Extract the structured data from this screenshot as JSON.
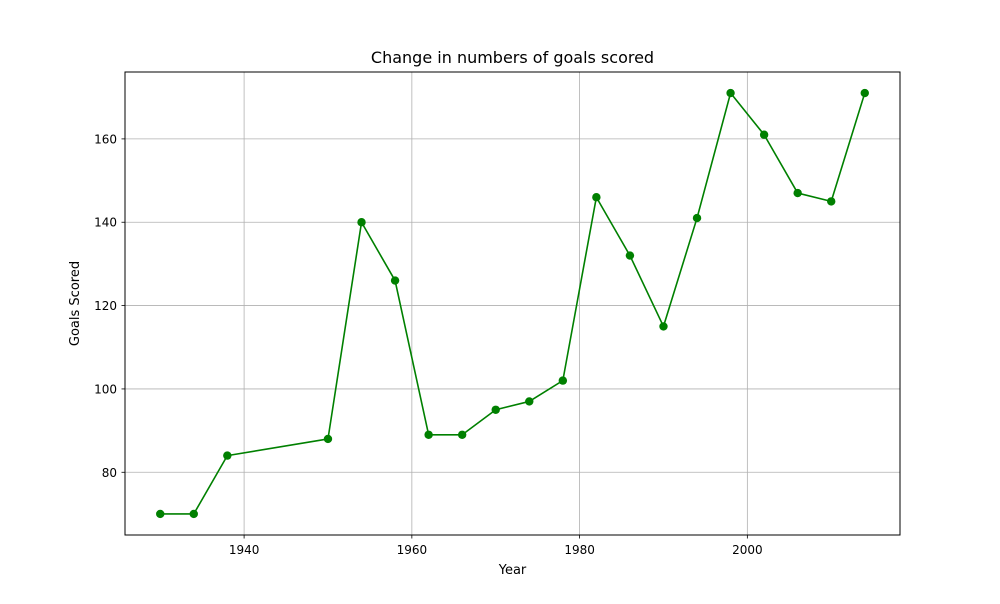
{
  "chart_data": {
    "type": "line",
    "title": "Change in numbers of goals scored",
    "xlabel": "Year",
    "ylabel": "Goals Scored",
    "xlim": [
      1925.8,
      2018.2
    ],
    "ylim": [
      64.95,
      176.05
    ],
    "x_ticks": [
      1940,
      1960,
      1980,
      2000
    ],
    "y_ticks": [
      80,
      100,
      120,
      140,
      160
    ],
    "grid": true,
    "series": [
      {
        "color": "#008000",
        "marker": "circle",
        "x": [
          1930,
          1934,
          1938,
          1950,
          1954,
          1958,
          1962,
          1966,
          1970,
          1974,
          1978,
          1982,
          1986,
          1990,
          1994,
          1998,
          2002,
          2006,
          2010,
          2014
        ],
        "y": [
          70,
          70,
          84,
          88,
          140,
          126,
          89,
          89,
          95,
          97,
          102,
          146,
          132,
          115,
          141,
          171,
          161,
          147,
          145,
          171
        ]
      }
    ]
  }
}
